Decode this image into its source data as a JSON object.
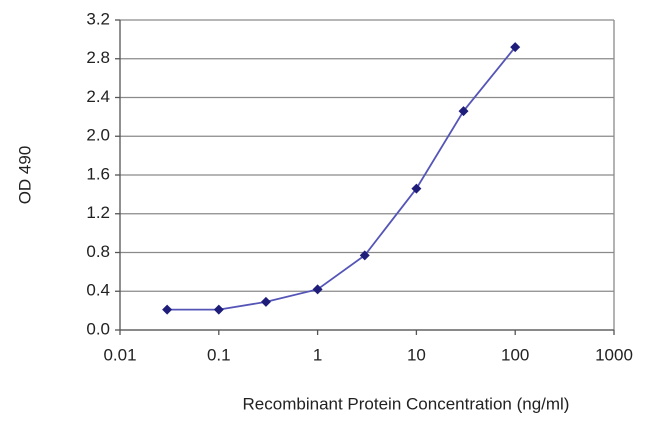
{
  "chart_data": {
    "type": "line",
    "x_label": "Recombinant Protein Concentration (ng/ml)",
    "y_label": "OD 490",
    "x": [
      0.03,
      0.1,
      0.3,
      1,
      3,
      10,
      30,
      100
    ],
    "values": [
      0.21,
      0.21,
      0.29,
      0.42,
      0.77,
      1.46,
      2.26,
      2.92
    ],
    "color": "#5555b8",
    "marker_color": "#1e1e7a",
    "xscale": "log",
    "xlim": [
      0.01,
      1000
    ],
    "xticks": [
      0.01,
      0.1,
      1,
      10,
      100,
      1000
    ],
    "ylim": [
      0,
      3.2
    ],
    "yticks": [
      {
        "value": 0,
        "label": "0.0"
      },
      0.4,
      0.8,
      1.2,
      1.6,
      {
        "value": 2,
        "label": "2.0"
      },
      2.4,
      2.8,
      3.2
    ],
    "grid": true
  }
}
